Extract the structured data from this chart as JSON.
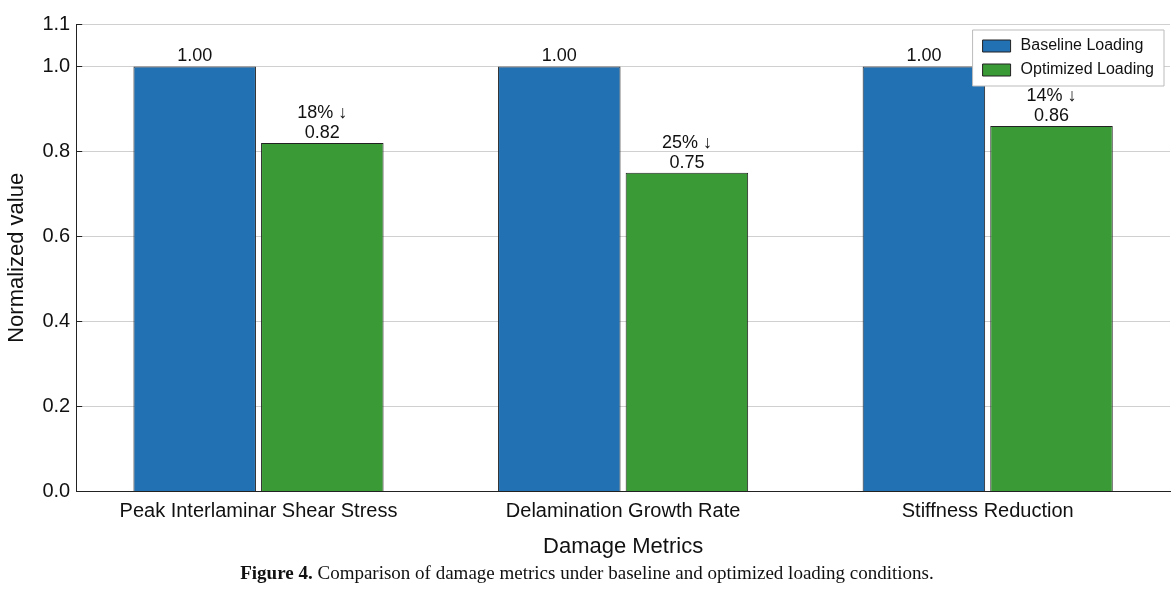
{
  "chart_data": {
    "type": "bar",
    "xlabel": "Damage Metrics",
    "ylabel": "Normalized value",
    "categories": [
      "Peak Interlaminar Shear Stress",
      "Delamination Growth Rate",
      "Stiffness Reduction"
    ],
    "series": [
      {
        "name": "Baseline Loading",
        "color": "#2271b3",
        "values": [
          1.0,
          1.0,
          1.0
        ],
        "value_labels": [
          "1.00",
          "1.00",
          "1.00"
        ]
      },
      {
        "name": "Optimized Loading",
        "color": "#3a9a35",
        "values": [
          0.82,
          0.75,
          0.86
        ],
        "value_labels": [
          "0.82",
          "0.75",
          "0.86"
        ]
      }
    ],
    "ylim": [
      0,
      1.1
    ],
    "yticks": [
      {
        "value": 0,
        "label": "0.0"
      },
      0.2,
      0.4,
      0.6,
      0.8,
      {
        "value": 1,
        "label": "1.0"
      },
      1.1
    ],
    "grid": "y",
    "legend": "top right",
    "annotations": [
      {
        "text": "18% ↓",
        "x": "Peak Interlaminar Shear Stress",
        "y": 0.82
      },
      {
        "text": "25% ↓",
        "x": "Delamination Growth Rate",
        "y": 0.75
      },
      {
        "text": "14% ↓",
        "x": "Stiffness Reduction",
        "y": 0.86
      },
      "Figure 4. Comparison of damage metrics under baseline and optimized loading conditions."
    ]
  }
}
